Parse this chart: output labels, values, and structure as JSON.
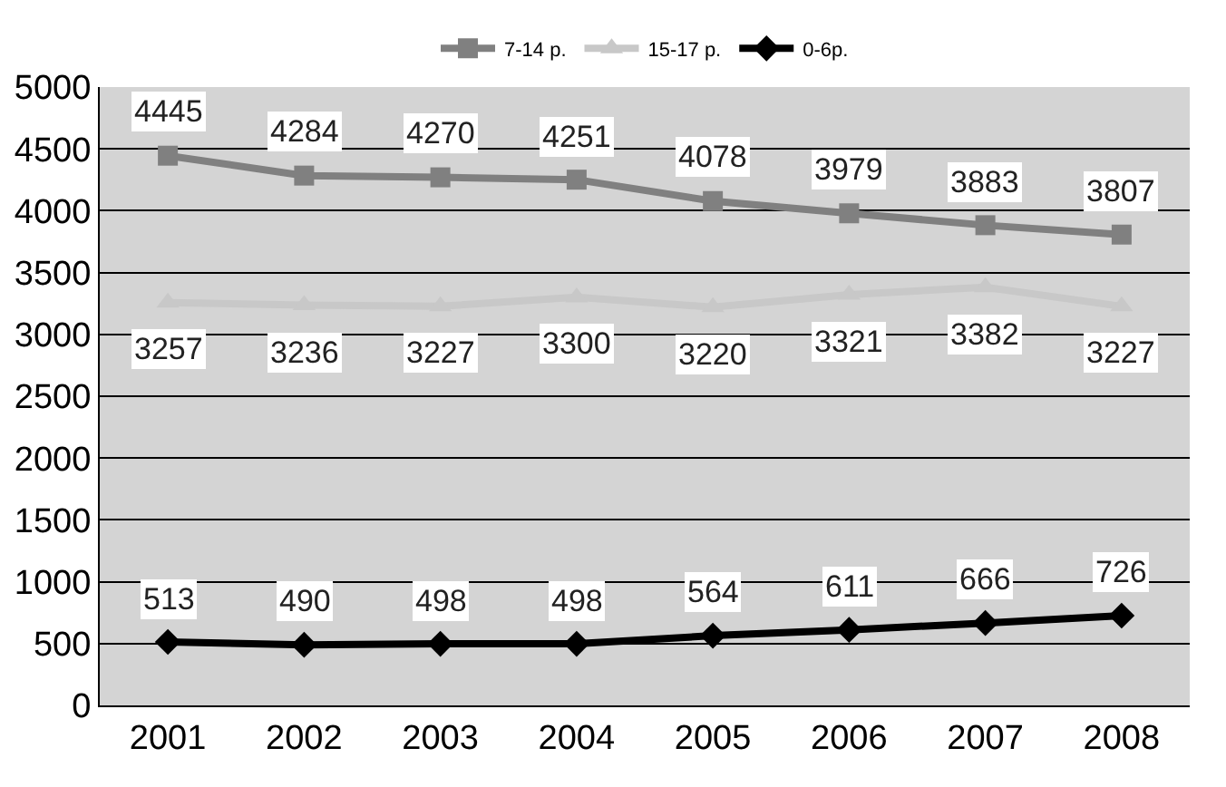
{
  "chart_data": {
    "type": "line",
    "categories": [
      "2001",
      "2002",
      "2003",
      "2004",
      "2005",
      "2006",
      "2007",
      "2008"
    ],
    "series": [
      {
        "name": "7-14 р.",
        "color": "#808080",
        "marker": "square",
        "values": [
          4445,
          4284,
          4270,
          4251,
          4078,
          3979,
          3883,
          3807
        ]
      },
      {
        "name": "15-17 р.",
        "color": "#c8c8c8",
        "marker": "triangle",
        "values": [
          3257,
          3236,
          3227,
          3300,
          3220,
          3321,
          3382,
          3227
        ]
      },
      {
        "name": "0-6р.",
        "color": "#000000",
        "marker": "diamond",
        "values": [
          513,
          490,
          498,
          498,
          564,
          611,
          666,
          726
        ]
      }
    ],
    "ylim": [
      0,
      5000
    ],
    "yticks": [
      0,
      500,
      1000,
      1500,
      2000,
      2500,
      3000,
      3500,
      4000,
      4500,
      5000
    ],
    "grid": "y",
    "legend": "top",
    "data_labels": true,
    "line_style": "solid"
  }
}
